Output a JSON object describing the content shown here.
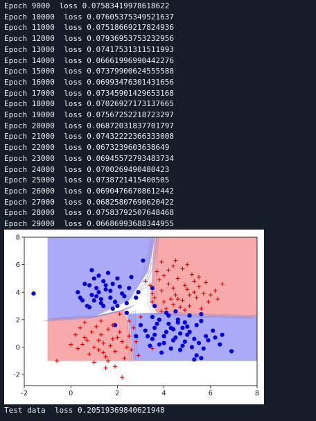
{
  "log_lines": [
    "Epoch 9000  loss 0.07583419978618622",
    "Epoch 10000  loss 0.07605375349521637",
    "Epoch 11000  loss 0.07518669217824936",
    "Epoch 12000  loss 0.07936953753232956",
    "Epoch 13000  loss 0.07417531311511993",
    "Epoch 14000  loss 0.06661996990442276",
    "Epoch 15000  loss 0.07379900624555588",
    "Epoch 16000  loss 0.06993476301431656",
    "Epoch 17000  loss 0.07345901429653168",
    "Epoch 18000  loss 0.07026927173137665",
    "Epoch 19000  loss 0.07567252218723297",
    "Epoch 20000  loss 0.06872031837701797",
    "Epoch 21000  loss 0.07432222366333008",
    "Epoch 22000  loss 0.0673239603638649",
    "Epoch 23000  loss 0.06945572793483734",
    "Epoch 24000  loss 0.0700269490480423",
    "Epoch 25000  loss 0.0738721415400505",
    "Epoch 26000  loss 0.06904766708612442",
    "Epoch 27000  loss 0.06825807690620422",
    "Epoch 28000  loss 0.07583792507648468",
    "Epoch 29000  loss 0.06686993688344955"
  ],
  "test_line": "Test data  loss 0.20519369840621948",
  "colors": {
    "background": "#161d28",
    "text": "#e9edf2",
    "region_blue": "#aaaaf8",
    "region_red": "#f8aaaa",
    "point_blue": "#0000dd",
    "point_red": "#dd0000"
  },
  "chart_data": {
    "type": "scatter",
    "xlim": [
      -2,
      8
    ],
    "ylim": [
      -2.8,
      8
    ],
    "x_ticks": [
      "-2",
      "0",
      "2",
      "4",
      "6",
      "8"
    ],
    "x_tick_values": [
      -2,
      0,
      2,
      4,
      6,
      8
    ],
    "y_ticks": [
      "-2",
      "0",
      "2",
      "4",
      "6",
      "8"
    ],
    "y_tick_values": [
      -2,
      0,
      2,
      4,
      6,
      8
    ],
    "region_extent": {
      "x": [
        -1,
        8
      ],
      "y": [
        -1,
        8
      ]
    },
    "decision_regions": [
      {
        "label": "blue",
        "polygon": [
          [
            -1,
            8
          ],
          [
            3.6,
            8
          ],
          [
            3.5,
            7
          ],
          [
            3.3,
            5.5
          ],
          [
            2.5,
            3.4
          ],
          [
            1,
            2.2
          ],
          [
            -1,
            2.0
          ]
        ]
      },
      {
        "label": "red",
        "polygon": [
          [
            3.6,
            8
          ],
          [
            8,
            8
          ],
          [
            8,
            2.2
          ],
          [
            5.5,
            2.3
          ],
          [
            3.7,
            2.5
          ],
          [
            3.4,
            3.3
          ],
          [
            3.5,
            5.5
          ]
        ]
      },
      {
        "label": "red",
        "polygon": [
          [
            -1,
            2.0
          ],
          [
            1,
            2.2
          ],
          [
            2.3,
            2.7
          ],
          [
            2.6,
            1
          ],
          [
            2.7,
            -1
          ],
          [
            -1,
            -1
          ]
        ]
      },
      {
        "label": "blue",
        "polygon": [
          [
            2.7,
            -1
          ],
          [
            2.6,
            1
          ],
          [
            2.4,
            2.4
          ],
          [
            3.2,
            2.5
          ],
          [
            3.7,
            2.5
          ],
          [
            5.5,
            2.3
          ],
          [
            8,
            2.2
          ],
          [
            8,
            -1
          ]
        ]
      }
    ],
    "series": [
      {
        "name": "blue",
        "marker": "circle",
        "points": [
          [
            -1.6,
            3.9
          ],
          [
            1.1,
            3.7
          ],
          [
            1.5,
            4.2
          ],
          [
            0.8,
            4.5
          ],
          [
            1.3,
            3.2
          ],
          [
            2.2,
            3.9
          ],
          [
            1.8,
            4.6
          ],
          [
            0.5,
            3.4
          ],
          [
            1.0,
            5.0
          ],
          [
            1.7,
            3.6
          ],
          [
            2.0,
            3.0
          ],
          [
            0.3,
            4.0
          ],
          [
            1.4,
            4.8
          ],
          [
            2.5,
            4.3
          ],
          [
            0.7,
            3.0
          ],
          [
            1.9,
            3.3
          ],
          [
            1.2,
            4.0
          ],
          [
            0.9,
            3.8
          ],
          [
            1.6,
            5.4
          ],
          [
            2.6,
            5.1
          ],
          [
            2.1,
            4.4
          ],
          [
            1.3,
            3.5
          ],
          [
            0.6,
            4.6
          ],
          [
            1.8,
            2.8
          ],
          [
            2.3,
            3.7
          ],
          [
            1.0,
            3.4
          ],
          [
            1.5,
            4.5
          ],
          [
            0.4,
            3.6
          ],
          [
            2.9,
            4.0
          ],
          [
            1.1,
            4.3
          ],
          [
            2.0,
            5.0
          ],
          [
            1.7,
            4.1
          ],
          [
            0.8,
            2.9
          ],
          [
            1.4,
            3.0
          ],
          [
            2.4,
            3.2
          ],
          [
            1.2,
            5.2
          ],
          [
            2.8,
            3.6
          ],
          [
            0.9,
            5.6
          ],
          [
            3.1,
            6.3
          ],
          [
            3.6,
            3.0
          ],
          [
            3.5,
            4.3
          ],
          [
            4.0,
            0.8
          ],
          [
            4.3,
            1.4
          ],
          [
            3.8,
            0.2
          ],
          [
            4.6,
            1.8
          ],
          [
            5.1,
            1.1
          ],
          [
            3.5,
            0.6
          ],
          [
            4.9,
            0.4
          ],
          [
            4.2,
            2.3
          ],
          [
            5.4,
            1.6
          ],
          [
            3.2,
            1.2
          ],
          [
            4.7,
            -0.2
          ],
          [
            5.8,
            0.8
          ],
          [
            4.4,
            0.5
          ],
          [
            3.7,
            1.7
          ],
          [
            5.2,
            0.0
          ],
          [
            4.1,
            1.1
          ],
          [
            4.8,
            1.4
          ],
          [
            3.9,
            -0.4
          ],
          [
            5.6,
            1.9
          ],
          [
            4.5,
            2.6
          ],
          [
            3.4,
            0.1
          ],
          [
            5.0,
            0.9
          ],
          [
            4.3,
            -0.1
          ],
          [
            3.6,
            1.4
          ],
          [
            5.3,
            0.6
          ],
          [
            4.6,
            2.0
          ],
          [
            6.1,
            1.2
          ],
          [
            4.0,
            0.3
          ],
          [
            4.9,
            1.8
          ],
          [
            5.5,
            0.3
          ],
          [
            3.3,
            0.8
          ],
          [
            4.7,
            1.0
          ],
          [
            6.4,
            0.2
          ],
          [
            5.9,
            0.5
          ],
          [
            4.2,
            1.7
          ],
          [
            5.4,
            -0.6
          ],
          [
            3.8,
            2.0
          ],
          [
            4.5,
            0.7
          ],
          [
            6.5,
            0.9
          ],
          [
            5.7,
            -0.1
          ],
          [
            4.1,
            2.5
          ],
          [
            6.9,
            -0.3
          ],
          [
            5.1,
            2.3
          ],
          [
            5.6,
            2.4
          ],
          [
            4.4,
            1.3
          ],
          [
            5.3,
            -0.9
          ],
          [
            5.0,
            1.5
          ],
          [
            3.6,
            0.9
          ],
          [
            6.2,
            0.7
          ],
          [
            5.6,
            -0.8
          ],
          [
            4.8,
            0.1
          ],
          [
            2.8,
            0.8
          ],
          [
            2.4,
            2.5
          ],
          [
            3.5,
            2.2
          ],
          [
            1.9,
            1.6
          ],
          [
            3.0,
            1.6
          ]
        ]
      },
      {
        "name": "red",
        "marker": "plus",
        "points": [
          [
            3.9,
            4.1
          ],
          [
            4.5,
            3.8
          ],
          [
            4.2,
            4.6
          ],
          [
            5.0,
            4.2
          ],
          [
            3.6,
            3.6
          ],
          [
            4.8,
            3.4
          ],
          [
            5.3,
            4.8
          ],
          [
            4.0,
            5.2
          ],
          [
            5.7,
            3.9
          ],
          [
            4.4,
            3.1
          ],
          [
            3.8,
            4.9
          ],
          [
            5.1,
            3.0
          ],
          [
            4.6,
            5.0
          ],
          [
            5.5,
            4.4
          ],
          [
            3.5,
            3.9
          ],
          [
            4.9,
            4.5
          ],
          [
            4.3,
            3.5
          ],
          [
            5.9,
            3.3
          ],
          [
            4.1,
            2.8
          ],
          [
            5.4,
            3.6
          ],
          [
            3.7,
            5.5
          ],
          [
            4.7,
            2.9
          ],
          [
            5.2,
            5.3
          ],
          [
            6.2,
            4.1
          ],
          [
            3.4,
            4.5
          ],
          [
            4.8,
            5.7
          ],
          [
            5.8,
            4.7
          ],
          [
            4.0,
            3.3
          ],
          [
            6.0,
            3.8
          ],
          [
            5.6,
            2.8
          ],
          [
            4.4,
            4.3
          ],
          [
            3.9,
            2.6
          ],
          [
            5.1,
            3.8
          ],
          [
            4.6,
            3.5
          ],
          [
            6.3,
            3.5
          ],
          [
            5.0,
            6.0
          ],
          [
            4.2,
            5.6
          ],
          [
            3.2,
            4.8
          ],
          [
            5.5,
            5.1
          ],
          [
            4.5,
            6.3
          ],
          [
            6.5,
            4.6
          ],
          [
            3.5,
            3.3
          ],
          [
            4.9,
            2.7
          ],
          [
            5.3,
            4.0
          ],
          [
            1.4,
            0.3
          ],
          [
            0.9,
            1.1
          ],
          [
            1.8,
            0.6
          ],
          [
            1.2,
            -0.2
          ],
          [
            0.6,
            0.7
          ],
          [
            1.6,
            1.3
          ],
          [
            2.2,
            0.4
          ],
          [
            1.0,
            0.0
          ],
          [
            0.4,
            1.4
          ],
          [
            1.9,
            -0.3
          ],
          [
            1.3,
            0.9
          ],
          [
            2.5,
            0.8
          ],
          [
            0.8,
            -0.5
          ],
          [
            1.7,
            0.1
          ],
          [
            2.1,
            1.1
          ],
          [
            0.5,
            0.2
          ],
          [
            1.5,
            -0.7
          ],
          [
            2.4,
            0.0
          ],
          [
            1.1,
            1.5
          ],
          [
            0.3,
            -0.1
          ],
          [
            2.0,
            0.7
          ],
          [
            1.4,
            -0.4
          ],
          [
            0.7,
            0.5
          ],
          [
            2.6,
            -0.2
          ],
          [
            1.8,
            1.6
          ],
          [
            1.2,
            0.5
          ],
          [
            2.3,
            -0.8
          ],
          [
            0.2,
            0.9
          ],
          [
            1.6,
            -1.0
          ],
          [
            2.8,
            0.4
          ],
          [
            -0.6,
            -1.0
          ],
          [
            1.0,
            -1.1
          ],
          [
            1.9,
            -1.4
          ],
          [
            2.2,
            -2.2
          ],
          [
            1.5,
            -1.5
          ],
          [
            2.9,
            -0.6
          ],
          [
            0.0,
            0.2
          ],
          [
            1.3,
            1.9
          ],
          [
            2.7,
            1.4
          ],
          [
            3.0,
            2.2
          ],
          [
            0.6,
            1.8
          ],
          [
            2.1,
            2.4
          ],
          [
            3.9,
            6.2
          ],
          [
            4.4,
            5.9
          ],
          [
            3.5,
            -0.1
          ],
          [
            2.5,
            1.9
          ]
        ]
      }
    ]
  }
}
